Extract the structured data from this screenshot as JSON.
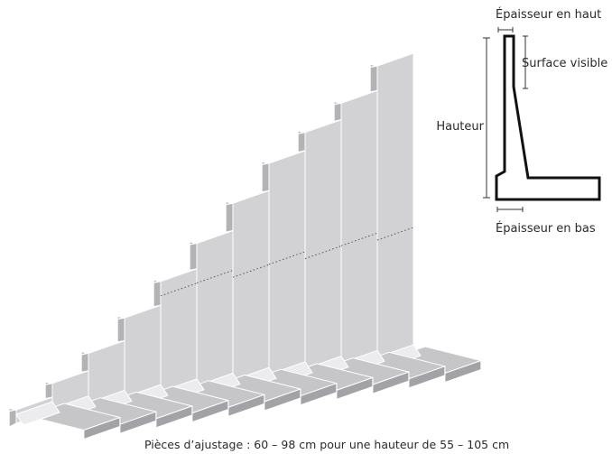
{
  "labels": {
    "thickness_top": "Épaisseur en haut",
    "visible_surface": "Surface visible",
    "height": "Hauteur",
    "thickness_bottom": "Épaisseur en bas",
    "caption": "Pièces d’ajustage : 60 – 98 cm pour une hauteur de 55 – 105 cm"
  },
  "colors": {
    "face": "#d2d2d4",
    "side": "#b3b3b6",
    "top": "#e7e7e9",
    "footing_top": "#c6c6c9",
    "footing_front": "#a3a3a7",
    "fillet": "#ececee",
    "outline": "#ffffff",
    "profile_stroke": "#111111"
  }
}
